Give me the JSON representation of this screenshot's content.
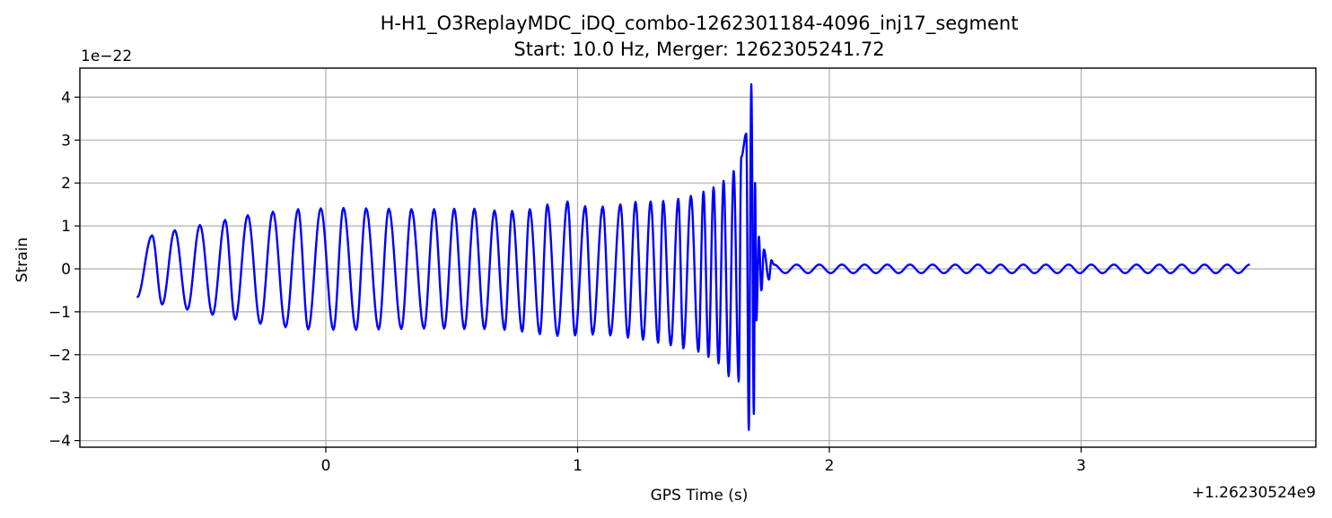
{
  "chart_data": {
    "type": "line",
    "title_line1": "H-H1_O3ReplayMDC_iDQ_combo-1262301184-4096_inj17_segment",
    "title_line2": "Start: 10.0 Hz, Merger: 1262305241.72",
    "xlabel": "GPS Time (s)",
    "ylabel": "Strain",
    "x_offset_label": "+1.26230524e9",
    "y_scale_label": "1e−22",
    "xlim": [
      -0.97,
      3.9
    ],
    "ylim": [
      -4.15,
      4.7
    ],
    "xticks": [
      0,
      1,
      2,
      3
    ],
    "xtick_labels": [
      "0",
      "1",
      "2",
      "3"
    ],
    "yticks": [
      -4,
      -3,
      -2,
      -1,
      0,
      1,
      2,
      3,
      4
    ],
    "ytick_labels": [
      "−4",
      "−3",
      "−2",
      "−1",
      "0",
      "1",
      "2",
      "3",
      "4"
    ],
    "grid": true,
    "series_color": "#0000ff",
    "series": [
      {
        "peaks": [
          [
            -0.69,
            0.78
          ],
          [
            -0.6,
            0.9
          ],
          [
            -0.5,
            1.02
          ],
          [
            -0.4,
            1.14
          ],
          [
            -0.31,
            1.25
          ],
          [
            -0.21,
            1.33
          ],
          [
            -0.11,
            1.39
          ],
          [
            -0.02,
            1.41
          ],
          [
            0.07,
            1.42
          ],
          [
            0.16,
            1.41
          ],
          [
            0.25,
            1.4
          ],
          [
            0.34,
            1.39
          ],
          [
            0.43,
            1.39
          ],
          [
            0.51,
            1.4
          ],
          [
            0.59,
            1.4
          ],
          [
            0.67,
            1.36
          ],
          [
            0.74,
            1.35
          ],
          [
            0.81,
            1.39
          ],
          [
            0.88,
            1.5
          ],
          [
            0.96,
            1.57
          ],
          [
            1.03,
            1.46
          ],
          [
            1.1,
            1.45
          ],
          [
            1.17,
            1.5
          ],
          [
            1.23,
            1.56
          ],
          [
            1.29,
            1.57
          ],
          [
            1.34,
            1.58
          ],
          [
            1.4,
            1.63
          ],
          [
            1.45,
            1.7
          ],
          [
            1.5,
            1.8
          ],
          [
            1.54,
            1.9
          ],
          [
            1.58,
            2.05
          ],
          [
            1.62,
            2.28
          ],
          [
            1.65,
            2.6
          ],
          [
            1.67,
            3.15
          ],
          [
            1.69,
            4.3
          ],
          [
            1.705,
            2.0
          ],
          [
            1.72,
            0.75
          ],
          [
            1.74,
            0.45
          ],
          [
            1.77,
            0.2
          ]
        ],
        "troughs": [
          [
            -0.75,
            -0.67
          ],
          [
            -0.65,
            -0.83
          ],
          [
            -0.55,
            -0.95
          ],
          [
            -0.45,
            -1.07
          ],
          [
            -0.36,
            -1.18
          ],
          [
            -0.26,
            -1.28
          ],
          [
            -0.16,
            -1.36
          ],
          [
            -0.07,
            -1.41
          ],
          [
            0.03,
            -1.42
          ],
          [
            0.12,
            -1.42
          ],
          [
            0.21,
            -1.41
          ],
          [
            0.3,
            -1.4
          ],
          [
            0.39,
            -1.39
          ],
          [
            0.47,
            -1.39
          ],
          [
            0.55,
            -1.4
          ],
          [
            0.63,
            -1.4
          ],
          [
            0.71,
            -1.42
          ],
          [
            0.78,
            -1.46
          ],
          [
            0.85,
            -1.52
          ],
          [
            0.92,
            -1.56
          ],
          [
            0.99,
            -1.55
          ],
          [
            1.06,
            -1.53
          ],
          [
            1.13,
            -1.55
          ],
          [
            1.2,
            -1.6
          ],
          [
            1.26,
            -1.65
          ],
          [
            1.32,
            -1.72
          ],
          [
            1.37,
            -1.78
          ],
          [
            1.42,
            -1.85
          ],
          [
            1.48,
            -1.93
          ],
          [
            1.52,
            -2.05
          ],
          [
            1.56,
            -2.2
          ],
          [
            1.6,
            -2.5
          ],
          [
            1.64,
            -2.62
          ],
          [
            1.68,
            -3.75
          ],
          [
            1.7,
            -3.38
          ],
          [
            1.71,
            -1.2
          ],
          [
            1.73,
            -0.5
          ],
          [
            1.76,
            -0.25
          ]
        ],
        "ringdown_x": [
          1.78,
          3.7
        ],
        "ringdown_amplitude": 0.1,
        "ringdown_period": 0.09
      }
    ]
  }
}
